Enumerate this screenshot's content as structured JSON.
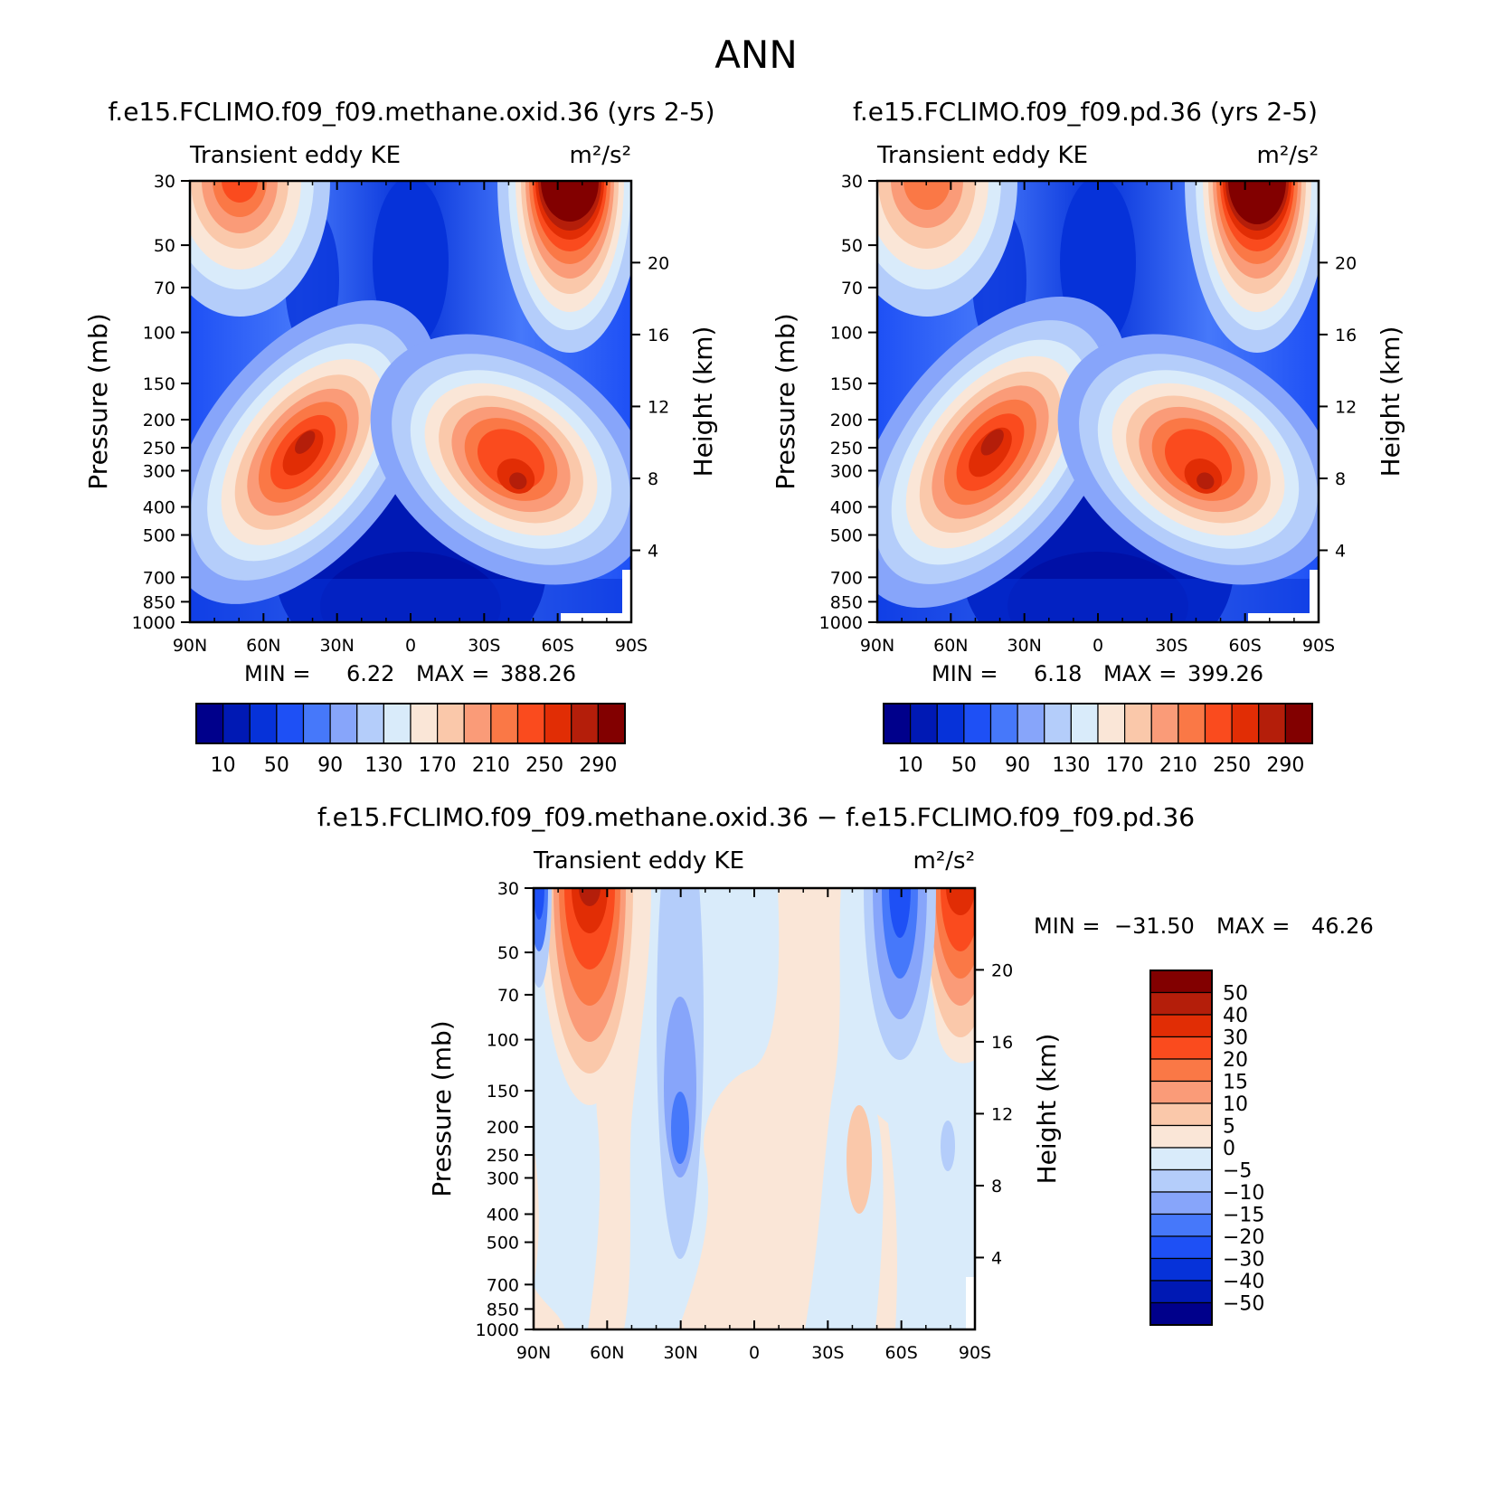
{
  "page_title": "ANN",
  "chart_data": [
    {
      "type": "heatmap",
      "case_title": "f.e15.FCLIMO.f09_f09.methane.oxid.36 (yrs 2-5)",
      "variable": "Transient eddy KE",
      "units": "m²/s²",
      "xlabel": "",
      "ylabel": "Pressure (mb)",
      "y2label": "Height (km)",
      "x_ticks": [
        "90N",
        "60N",
        "30N",
        "0",
        "30S",
        "60S",
        "90S"
      ],
      "y_ticks": [
        "30",
        "50",
        "70",
        "100",
        "150",
        "200",
        "250",
        "300",
        "400",
        "500",
        "700",
        "850",
        "1000"
      ],
      "y2_ticks": [
        "20",
        "16",
        "12",
        "8",
        "4"
      ],
      "stats": {
        "min_label": "MIN =",
        "min": "6.22",
        "max_label": "MAX =",
        "max": "388.26"
      },
      "colorbar": {
        "orientation": "horizontal",
        "labels": [
          "10",
          "50",
          "90",
          "130",
          "170",
          "210",
          "250",
          "290"
        ],
        "colors": [
          "#00008b",
          "#0019b4",
          "#0632d9",
          "#1e50f5",
          "#4678fa",
          "#87a5fa",
          "#b4cdfa",
          "#d9ebfa",
          "#fae6d7",
          "#fac8aa",
          "#fa9b78",
          "#fa7846",
          "#fa4b1e",
          "#e12d05",
          "#b41e0a",
          "#820000"
        ]
      }
    },
    {
      "type": "heatmap",
      "case_title": "f.e15.FCLIMO.f09_f09.pd.36 (yrs 2-5)",
      "variable": "Transient eddy KE",
      "units": "m²/s²",
      "xlabel": "",
      "ylabel": "Pressure (mb)",
      "y2label": "Height (km)",
      "x_ticks": [
        "90N",
        "60N",
        "30N",
        "0",
        "30S",
        "60S",
        "90S"
      ],
      "y_ticks": [
        "30",
        "50",
        "70",
        "100",
        "150",
        "200",
        "250",
        "300",
        "400",
        "500",
        "700",
        "850",
        "1000"
      ],
      "y2_ticks": [
        "20",
        "16",
        "12",
        "8",
        "4"
      ],
      "stats": {
        "min_label": "MIN =",
        "min": "6.18",
        "max_label": "MAX =",
        "max": "399.26"
      },
      "colorbar": {
        "orientation": "horizontal",
        "labels": [
          "10",
          "50",
          "90",
          "130",
          "170",
          "210",
          "250",
          "290"
        ],
        "colors": [
          "#00008b",
          "#0019b4",
          "#0632d9",
          "#1e50f5",
          "#4678fa",
          "#87a5fa",
          "#b4cdfa",
          "#d9ebfa",
          "#fae6d7",
          "#fac8aa",
          "#fa9b78",
          "#fa7846",
          "#fa4b1e",
          "#e12d05",
          "#b41e0a",
          "#820000"
        ]
      }
    },
    {
      "type": "heatmap",
      "case_title": "f.e15.FCLIMO.f09_f09.methane.oxid.36 − f.e15.FCLIMO.f09_f09.pd.36",
      "variable": "Transient eddy KE",
      "units": "m²/s²",
      "xlabel": "",
      "ylabel": "Pressure (mb)",
      "y2label": "Height (km)",
      "x_ticks": [
        "90N",
        "60N",
        "30N",
        "0",
        "30S",
        "60S",
        "90S"
      ],
      "y_ticks": [
        "30",
        "50",
        "70",
        "100",
        "150",
        "200",
        "250",
        "300",
        "400",
        "500",
        "700",
        "850",
        "1000"
      ],
      "y2_ticks": [
        "20",
        "16",
        "12",
        "8",
        "4"
      ],
      "stats": {
        "min_label": "MIN =",
        "min": "−31.50",
        "max_label": "MAX =",
        "max": "46.26"
      },
      "colorbar": {
        "orientation": "vertical",
        "labels": [
          "50",
          "40",
          "30",
          "20",
          "15",
          "10",
          "5",
          "0",
          "−5",
          "−10",
          "−15",
          "−20",
          "−30",
          "−40",
          "−50"
        ],
        "colors": [
          "#820000",
          "#b41e0a",
          "#e12d05",
          "#fa4b1e",
          "#fa7846",
          "#fa9b78",
          "#fac8aa",
          "#fae6d7",
          "#d9ebfa",
          "#b4cdfa",
          "#87a5fa",
          "#4678fa",
          "#1e50f5",
          "#0632d9",
          "#0019b4",
          "#00008b"
        ]
      }
    }
  ]
}
